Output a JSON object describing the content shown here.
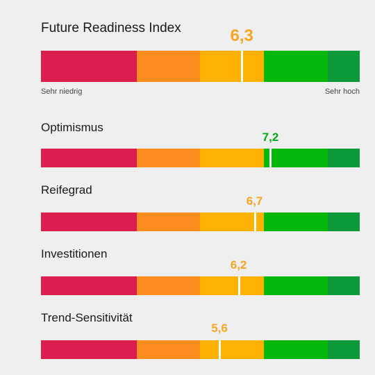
{
  "scale": {
    "min": 0,
    "max": 10,
    "segments": [
      {
        "from": 0,
        "to": 3,
        "color": "#dc1e4f"
      },
      {
        "from": 3,
        "to": 5,
        "color": "#fb8c1e"
      },
      {
        "from": 5,
        "to": 7,
        "color": "#ffb202"
      },
      {
        "from": 7,
        "to": 9,
        "color": "#04b70b"
      },
      {
        "from": 9,
        "to": 10,
        "color": "#0c9a3a"
      }
    ],
    "low_label": "Sehr niedrig",
    "high_label": "Sehr hoch"
  },
  "value_colors": {
    "orange": "#f5a623",
    "green": "#04a81b"
  },
  "chart_data": {
    "type": "bar",
    "categories": [
      "Future Readiness Index",
      "Optimismus",
      "Reifegrad",
      "Investitionen",
      "Trend-Sensitivität"
    ],
    "values": [
      6.3,
      7.2,
      6.7,
      6.2,
      5.6
    ],
    "value_labels": [
      "6,3",
      "7,2",
      "6,7",
      "6,2",
      "5,6"
    ],
    "xlim": [
      0,
      10
    ],
    "title": "",
    "xlabel": "",
    "ylabel": ""
  }
}
